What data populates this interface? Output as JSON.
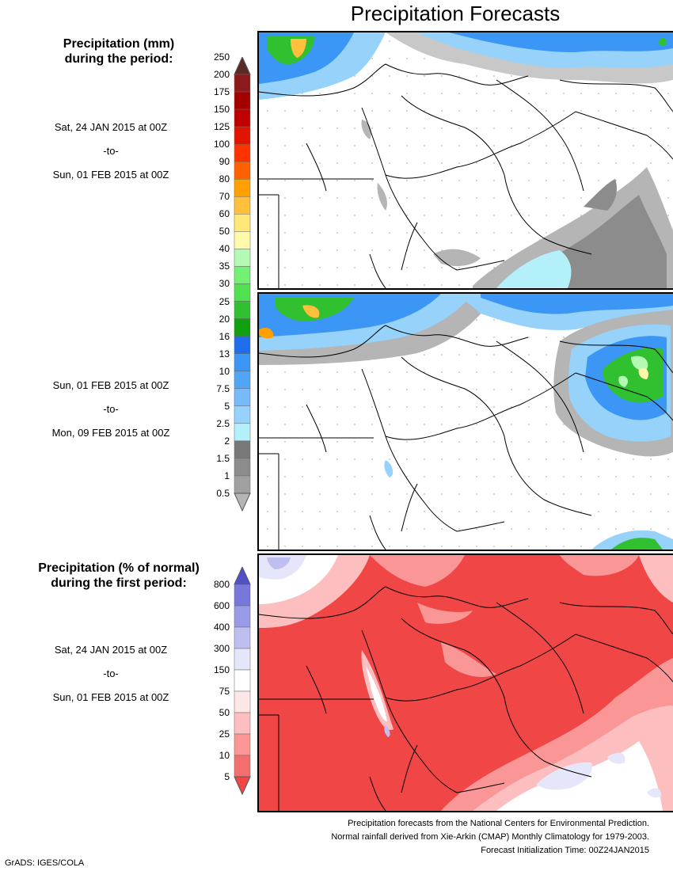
{
  "title": "Precipitation Forecasts",
  "mm_legend": {
    "heading_line1": "Precipitation (mm)",
    "heading_line2": "during the period:",
    "levels": [
      "0.5",
      "1",
      "1.5",
      "2",
      "2.5",
      "5",
      "7.5",
      "10",
      "13",
      "16",
      "20",
      "25",
      "30",
      "35",
      "40",
      "50",
      "60",
      "70",
      "80",
      "90",
      "100",
      "125",
      "150",
      "175",
      "200",
      "250"
    ],
    "colors": [
      "#b5b5b5",
      "#a0a0a0",
      "#8c8c8c",
      "#787878",
      "#b4f0fa",
      "#96d2fa",
      "#78b9fa",
      "#50a5f5",
      "#3c96f5",
      "#1e6eeb",
      "#0f9f0f",
      "#30c030",
      "#50e050",
      "#74f074",
      "#b4fab4",
      "#fffaaa",
      "#ffe878",
      "#ffc03c",
      "#ffa000",
      "#ff6000",
      "#ff3200",
      "#e11400",
      "#c00000",
      "#a50000",
      "#8b1a1a",
      "#5a2a24"
    ]
  },
  "pct_legend": {
    "heading_line1": "Precipitation (% of normal)",
    "heading_line2": "during the first period:",
    "levels": [
      "5",
      "10",
      "25",
      "50",
      "75",
      "150",
      "300",
      "400",
      "600",
      "800"
    ],
    "colors": [
      "#f04646",
      "#f56e6e",
      "#fa9696",
      "#fcbebe",
      "#fde6e6",
      "#ffffff",
      "#e6e6fa",
      "#bebef0",
      "#9a9ae6",
      "#7878dc",
      "#5050c8"
    ]
  },
  "periods": [
    {
      "start": "Sat, 24 JAN 2015 at 00Z",
      "sep": "-to-",
      "end": "Sun, 01 FEB 2015 at 00Z"
    },
    {
      "start": "Sun, 01 FEB 2015 at 00Z",
      "sep": "-to-",
      "end": "Mon, 09 FEB 2015 at 00Z"
    },
    {
      "start": "Sat, 24 JAN 2015 at 00Z",
      "sep": "-to-",
      "end": "Sun, 01 FEB 2015 at 00Z"
    }
  ],
  "footer": {
    "line1": "Precipitation forecasts from the National Centers for Environmental Prediction.",
    "line2": "Normal rainfall derived from Xie-Arkin (CMAP) Monthly Climatology for 1979-2003.",
    "line3": "Forecast Initialization Time: 00Z24JAN2015"
  },
  "credit": "GrADS: IGES/COLA"
}
